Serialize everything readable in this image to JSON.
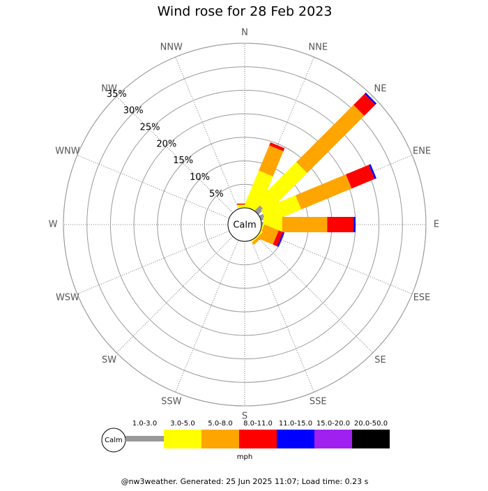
{
  "chart_data": {
    "type": "windrose",
    "title": "Wind rose for 28 Feb 2023",
    "directions": [
      "N",
      "NNE",
      "NE",
      "ENE",
      "E",
      "ESE",
      "SE",
      "SSE",
      "S",
      "SSW",
      "SW",
      "WSW",
      "W",
      "WNW",
      "NW",
      "NNW"
    ],
    "calm_label": "Calm",
    "series": [
      {
        "name": "1.0-3.0",
        "color": "#999999",
        "values": [
          0,
          0,
          1.6,
          0.9,
          0.4,
          0,
          0,
          0,
          0,
          0,
          0,
          0,
          0,
          0,
          0,
          0
        ]
      },
      {
        "name": "3.0-5.0",
        "color": "#ffff00",
        "values": [
          0.6,
          8.2,
          12.0,
          7.9,
          4.0,
          0.3,
          0.3,
          0,
          0,
          0,
          0,
          0,
          0,
          0,
          0,
          0
        ]
      },
      {
        "name": "5.0-8.0",
        "color": "#ffa500",
        "values": [
          0.1,
          5.8,
          17.2,
          11.6,
          9.6,
          3.3,
          0.6,
          0,
          0,
          0,
          0,
          0,
          0,
          0,
          0,
          0
        ]
      },
      {
        "name": "8.0-11.0",
        "color": "#ff0000",
        "values": [
          0.2,
          0.7,
          3.3,
          5.3,
          5.6,
          1.0,
          0,
          0,
          0,
          0,
          0,
          0,
          0,
          0,
          0,
          0
        ]
      },
      {
        "name": "11.0-15.0",
        "color": "#0000ff",
        "values": [
          0,
          0,
          0.4,
          0.4,
          0.4,
          0.3,
          0,
          0,
          0,
          0,
          0,
          0,
          0,
          0,
          0,
          0
        ]
      },
      {
        "name": "15.0-20.0",
        "color": "#a020f0",
        "values": [
          0,
          0,
          0,
          0,
          0,
          0,
          0,
          0,
          0,
          0,
          0,
          0,
          0,
          0,
          0,
          0
        ]
      },
      {
        "name": "20.0-50.0",
        "color": "#000000",
        "values": [
          0,
          0,
          0,
          0,
          0,
          0,
          0,
          0,
          0,
          0,
          0,
          0,
          0,
          0,
          0,
          0
        ]
      }
    ],
    "rlim": [
      0,
      35
    ],
    "rticks": [
      {
        "value": 5,
        "label": "5%"
      },
      {
        "value": 10,
        "label": "10%"
      },
      {
        "value": 15,
        "label": "15%"
      },
      {
        "value": 20,
        "label": "20%"
      },
      {
        "value": 25,
        "label": "25%"
      },
      {
        "value": 30,
        "label": "30%"
      },
      {
        "value": 35,
        "label": "35%"
      }
    ],
    "legend_unit": "mph",
    "footer": "@nw3weather. Generated: 25 Jun 2025 11:07; Load time: 0.23 s"
  }
}
